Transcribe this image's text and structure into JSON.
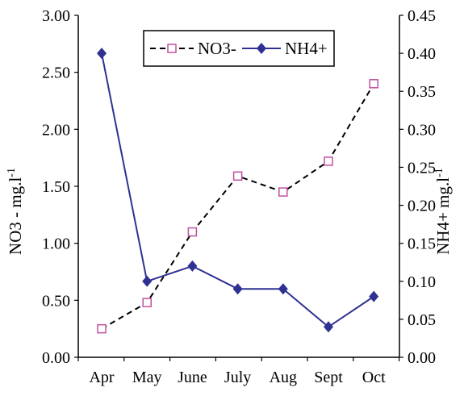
{
  "chart_data": {
    "type": "line",
    "categories": [
      "Apr",
      "May",
      "June",
      "July",
      "Aug",
      "Sept",
      "Oct"
    ],
    "series": [
      {
        "name": "NO3-",
        "axis": "left",
        "color": "#000000",
        "marker_color": "#c0509f",
        "line_style": "dashed",
        "marker": "hollow-square",
        "values": [
          0.25,
          0.48,
          1.1,
          1.59,
          1.45,
          1.72,
          2.4
        ]
      },
      {
        "name": "NH4+",
        "axis": "right",
        "color": "#2e3192",
        "line_style": "solid",
        "marker": "filled-diamond",
        "values": [
          0.4,
          0.1,
          0.12,
          0.09,
          0.09,
          0.04,
          0.08
        ]
      }
    ],
    "y_left": {
      "label_main": "NO3 - mg.l",
      "label_sup": "-1",
      "ylim": [
        0,
        3
      ],
      "ticks": [
        "0.00",
        "0.50",
        "1.00",
        "1.50",
        "2.00",
        "2.50",
        "3.00"
      ]
    },
    "y_right": {
      "label_main": "NH4+ mg.l",
      "label_sup": "-1",
      "ylim": [
        0,
        0.45
      ],
      "ticks": [
        "0.00",
        "0.05",
        "0.10",
        "0.15",
        "0.20",
        "0.25",
        "0.30",
        "0.35",
        "0.40",
        "0.45"
      ]
    },
    "legend": {
      "position": "top-center",
      "entries": [
        "NO3-",
        "NH4+"
      ]
    },
    "grid": false
  }
}
